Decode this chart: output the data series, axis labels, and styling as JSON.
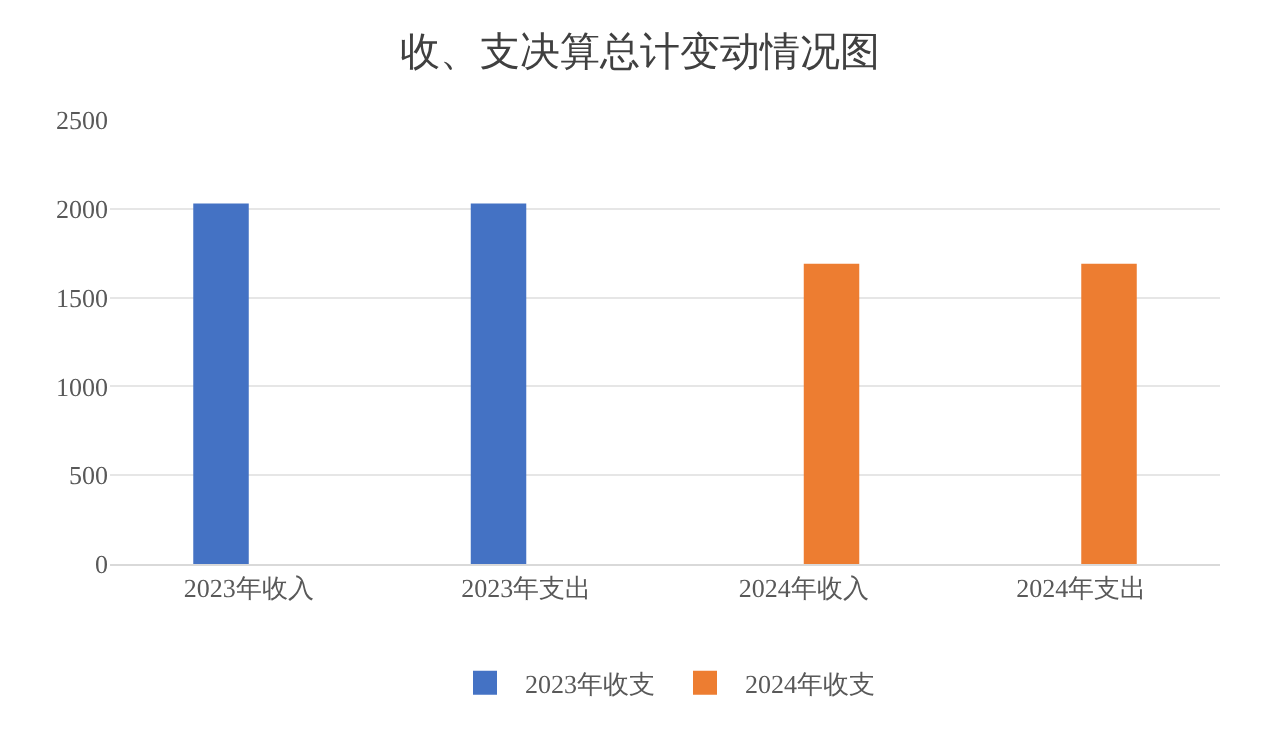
{
  "chart_data": {
    "type": "bar",
    "title": "收、支决算总计变动情况图",
    "categories": [
      "2023年收入",
      "2023年支出",
      "2024年收入",
      "2024年支出"
    ],
    "series": [
      {
        "name": "2023年收支",
        "color": "#4472c4",
        "values": [
          2030,
          2030,
          null,
          null
        ]
      },
      {
        "name": "2024年收支",
        "color": "#ed7d31",
        "values": [
          null,
          null,
          1690,
          1690
        ]
      }
    ],
    "ylim": [
      0,
      2500
    ],
    "yticks": [
      0,
      500,
      1000,
      1500,
      2000,
      2500
    ],
    "grid": "y",
    "legend": "bottom"
  }
}
